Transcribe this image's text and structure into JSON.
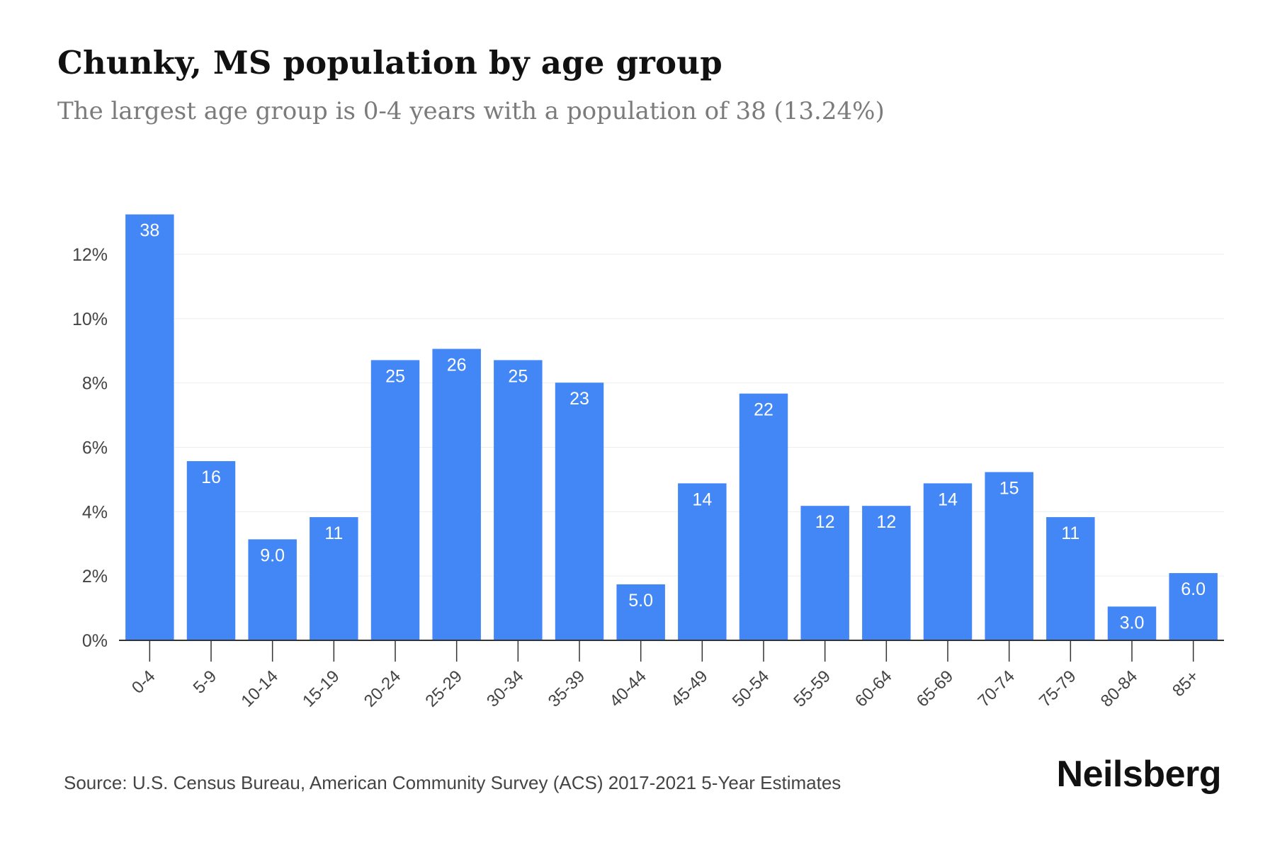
{
  "header": {
    "title": "Chunky, MS population by age group",
    "subtitle": "The largest age group is 0-4 years with a population of 38 (13.24%)"
  },
  "footer": {
    "source": "Source: U.S. Census Bureau, American Community Survey (ACS) 2017-2021 5-Year Estimates",
    "brand": "Neilsberg"
  },
  "colors": {
    "bar": "#4287f5",
    "bar_label": "#ffffff",
    "axis": "#333333",
    "grid": "#eeeeee",
    "tick_text": "#444444"
  },
  "chart_data": {
    "type": "bar",
    "categories": [
      "0-4",
      "5-9",
      "10-14",
      "15-19",
      "20-24",
      "25-29",
      "30-34",
      "35-39",
      "40-44",
      "45-49",
      "50-54",
      "55-59",
      "60-64",
      "65-69",
      "70-74",
      "75-79",
      "80-84",
      "85+"
    ],
    "values": [
      13.24,
      5.57,
      3.14,
      3.83,
      8.71,
      9.06,
      8.71,
      8.01,
      1.74,
      4.88,
      7.67,
      4.18,
      4.18,
      4.88,
      5.23,
      3.83,
      1.05,
      2.09
    ],
    "data_labels": [
      "38",
      "16",
      "9.0",
      "11",
      "25",
      "26",
      "25",
      "23",
      "5.0",
      "14",
      "22",
      "12",
      "12",
      "14",
      "15",
      "11",
      "3.0",
      "6.0"
    ],
    "yticks": [
      0,
      2,
      4,
      6,
      8,
      10,
      12
    ],
    "ytick_labels": [
      "0%",
      "2%",
      "4%",
      "6%",
      "8%",
      "10%",
      "12%"
    ],
    "ylim": [
      0,
      13.24
    ],
    "grid": true,
    "legend": "none",
    "xlabel": "",
    "ylabel": ""
  }
}
